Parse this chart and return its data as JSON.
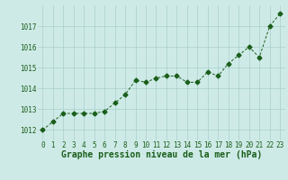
{
  "x": [
    0,
    1,
    2,
    3,
    4,
    5,
    6,
    7,
    8,
    9,
    10,
    11,
    12,
    13,
    14,
    15,
    16,
    17,
    18,
    19,
    20,
    21,
    22,
    23
  ],
  "y": [
    1012.0,
    1012.4,
    1012.8,
    1012.8,
    1012.8,
    1012.8,
    1012.9,
    1013.3,
    1013.7,
    1014.4,
    1014.3,
    1014.5,
    1014.6,
    1014.6,
    1014.3,
    1014.3,
    1014.8,
    1014.6,
    1015.2,
    1015.6,
    1016.0,
    1015.5,
    1017.0,
    1017.6
  ],
  "line_color": "#1a5e1a",
  "marker": "D",
  "marker_size": 2.5,
  "bg_color": "#ceeae7",
  "grid_color": "#aacfcc",
  "xlabel": "Graphe pression niveau de la mer (hPa)",
  "xlim": [
    -0.5,
    23.5
  ],
  "ylim": [
    1011.5,
    1018.0
  ],
  "yticks": [
    1012,
    1013,
    1014,
    1015,
    1016,
    1017
  ],
  "xticks": [
    0,
    1,
    2,
    3,
    4,
    5,
    6,
    7,
    8,
    9,
    10,
    11,
    12,
    13,
    14,
    15,
    16,
    17,
    18,
    19,
    20,
    21,
    22,
    23
  ],
  "tick_label_fontsize": 5.5,
  "xlabel_fontsize": 7,
  "xlabel_fontweight": "bold"
}
